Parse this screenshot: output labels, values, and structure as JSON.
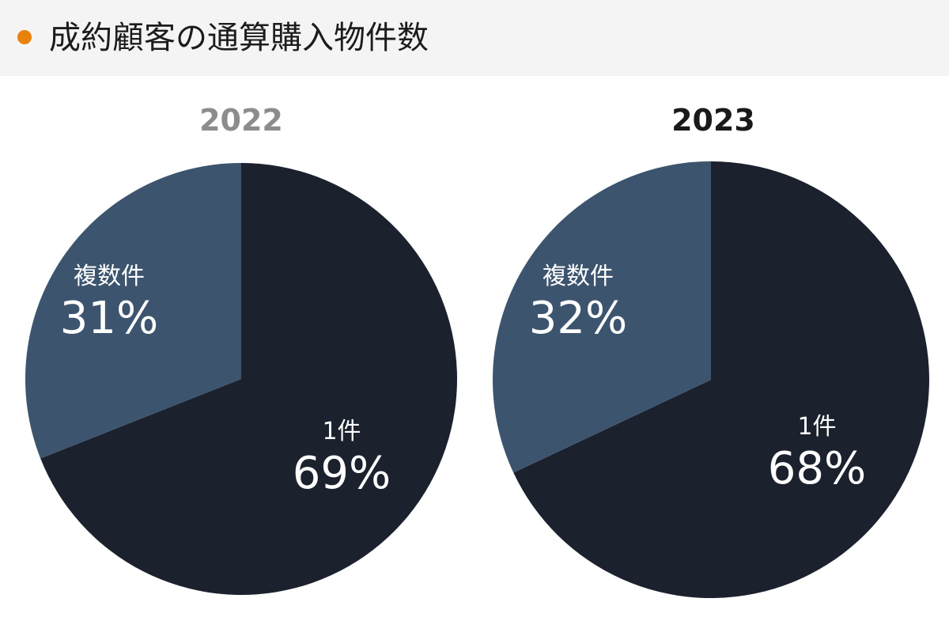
{
  "header": {
    "title": "成約顧客の通算購入物件数",
    "bullet_color": "#e8820c"
  },
  "colors": {
    "single": "#1b222d",
    "multiple": "#3d546e"
  },
  "chart_data": [
    {
      "type": "pie",
      "title": "2022",
      "title_color": "#8c8c8c",
      "slices": [
        {
          "label": "1件",
          "value": 69,
          "value_label": "69%",
          "color": "#1b222d"
        },
        {
          "label": "複数件",
          "value": 31,
          "value_label": "31%",
          "color": "#3d546e"
        }
      ]
    },
    {
      "type": "pie",
      "title": "2023",
      "title_color": "#1a1a1a",
      "slices": [
        {
          "label": "1件",
          "value": 68,
          "value_label": "68%",
          "color": "#1b222d"
        },
        {
          "label": "複数件",
          "value": 32,
          "value_label": "32%",
          "color": "#3d546e"
        }
      ]
    }
  ]
}
